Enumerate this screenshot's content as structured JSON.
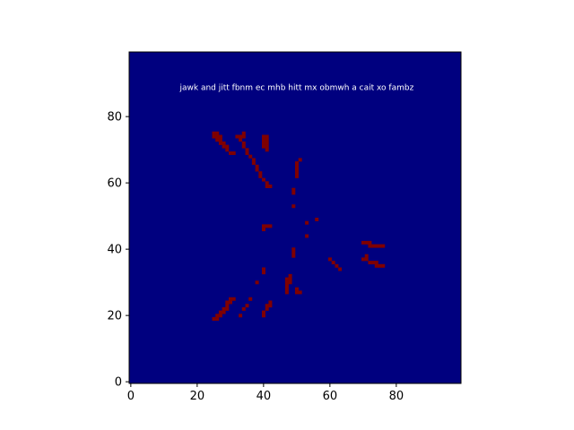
{
  "chart_data": {
    "type": "heatmap",
    "title": "",
    "xlabel": "",
    "ylabel": "",
    "xlim": [
      -0.5,
      99.5
    ],
    "ylim": [
      99.5,
      -0.5
    ],
    "x_ticks": [
      "0",
      "20",
      "40",
      "60",
      "80"
    ],
    "y_ticks": [
      "0",
      "20",
      "40",
      "60",
      "80"
    ],
    "grid": false,
    "colors": {
      "background": "#00007f",
      "foreground": "#7f0000",
      "annotation_text": "#ffffff"
    },
    "value_domain": [
      0,
      1
    ],
    "cells_value_1": [
      [
        25,
        20
      ],
      [
        26,
        20
      ],
      [
        26,
        21
      ],
      [
        27,
        21
      ],
      [
        27,
        22
      ],
      [
        28,
        22
      ],
      [
        28,
        23
      ],
      [
        29,
        23
      ],
      [
        29,
        24
      ],
      [
        29,
        25
      ],
      [
        30,
        25
      ],
      [
        30,
        26
      ],
      [
        31,
        26
      ],
      [
        33,
        21
      ],
      [
        34,
        23
      ],
      [
        35,
        24
      ],
      [
        36,
        26
      ],
      [
        38,
        31
      ],
      [
        40,
        21
      ],
      [
        40,
        22
      ],
      [
        41,
        23
      ],
      [
        41,
        24
      ],
      [
        42,
        24
      ],
      [
        42,
        25
      ],
      [
        40,
        34
      ],
      [
        40,
        35
      ],
      [
        47,
        28
      ],
      [
        47,
        29
      ],
      [
        47,
        30
      ],
      [
        47,
        31
      ],
      [
        47,
        32
      ],
      [
        48,
        31
      ],
      [
        48,
        32
      ],
      [
        48,
        33
      ],
      [
        50,
        28
      ],
      [
        50,
        29
      ],
      [
        51,
        28
      ],
      [
        49,
        39
      ],
      [
        49,
        40
      ],
      [
        49,
        41
      ],
      [
        60,
        38
      ],
      [
        61,
        37
      ],
      [
        62,
        36
      ],
      [
        63,
        35
      ],
      [
        70,
        38
      ],
      [
        71,
        38
      ],
      [
        71,
        39
      ],
      [
        72,
        37
      ],
      [
        73,
        37
      ],
      [
        74,
        37
      ],
      [
        74,
        36
      ],
      [
        75,
        36
      ],
      [
        76,
        36
      ],
      [
        70,
        43
      ],
      [
        71,
        43
      ],
      [
        72,
        43
      ],
      [
        72,
        42
      ],
      [
        73,
        42
      ],
      [
        74,
        42
      ],
      [
        75,
        42
      ],
      [
        76,
        42
      ],
      [
        53,
        45
      ],
      [
        40,
        47
      ],
      [
        40,
        48
      ],
      [
        41,
        48
      ],
      [
        42,
        48
      ],
      [
        53,
        49
      ],
      [
        56,
        50
      ],
      [
        49,
        54
      ],
      [
        41,
        60
      ],
      [
        42,
        60
      ],
      [
        41,
        61
      ],
      [
        40,
        62
      ],
      [
        39,
        63
      ],
      [
        39,
        64
      ],
      [
        38,
        65
      ],
      [
        38,
        66
      ],
      [
        37,
        67
      ],
      [
        37,
        68
      ],
      [
        36,
        69
      ],
      [
        35,
        70
      ],
      [
        35,
        71
      ],
      [
        34,
        72
      ],
      [
        34,
        73
      ],
      [
        33,
        74
      ],
      [
        33,
        75
      ],
      [
        34,
        75
      ],
      [
        34,
        76
      ],
      [
        32,
        75
      ],
      [
        49,
        58
      ],
      [
        49,
        59
      ],
      [
        50,
        63
      ],
      [
        50,
        64
      ],
      [
        50,
        65
      ],
      [
        50,
        66
      ],
      [
        50,
        67
      ],
      [
        51,
        68
      ],
      [
        30,
        70
      ],
      [
        31,
        70
      ],
      [
        29,
        71
      ],
      [
        29,
        72
      ],
      [
        28,
        72
      ],
      [
        28,
        73
      ],
      [
        27,
        73
      ],
      [
        27,
        74
      ],
      [
        26,
        74
      ],
      [
        26,
        75
      ],
      [
        25,
        75
      ],
      [
        25,
        76
      ],
      [
        26,
        76
      ],
      [
        27,
        75
      ],
      [
        40,
        72
      ],
      [
        40,
        73
      ],
      [
        40,
        74
      ],
      [
        41,
        72
      ],
      [
        41,
        73
      ],
      [
        41,
        74
      ],
      [
        40,
        75
      ],
      [
        41,
        75
      ],
      [
        41,
        71
      ]
    ],
    "annotation": {
      "text": "jawk and jitt fbnm ec mhb hitt mx obmwh a cait xo fambz",
      "x": 50,
      "y": 88
    }
  }
}
